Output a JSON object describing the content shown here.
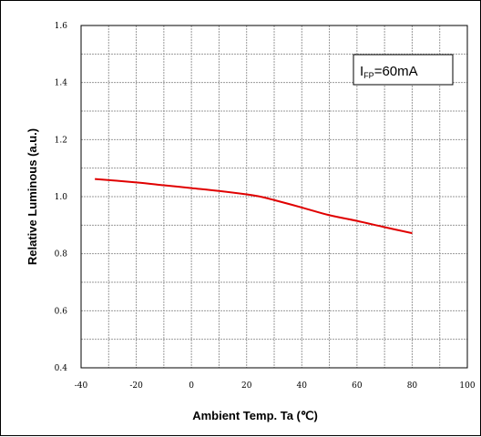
{
  "chart_data": {
    "type": "line",
    "title": "",
    "xlabel": "Ambient Temp. Ta (℃)",
    "ylabel": "Relative Luminous (a.u.)",
    "xlim": [
      -40,
      100
    ],
    "ylim": [
      0.4,
      1.6
    ],
    "x_ticks": [
      "-40",
      "-20",
      "0",
      "20",
      "40",
      "60",
      "80",
      "100"
    ],
    "y_ticks": [
      "0.4",
      "0.6",
      "0.8",
      "1.0",
      "1.2",
      "1.4",
      "1.6"
    ],
    "grid": true,
    "annotation": {
      "main": "I",
      "sub": "FP",
      "rest": "=60mA"
    },
    "series": [
      {
        "color": "#e00000",
        "x": [
          -35,
          -20,
          -10,
          0,
          10,
          20,
          25,
          30,
          40,
          50,
          60,
          70,
          80
        ],
        "y": [
          1.062,
          1.05,
          1.04,
          1.03,
          1.02,
          1.008,
          1.0,
          0.988,
          0.962,
          0.935,
          0.915,
          0.893,
          0.872
        ]
      }
    ]
  }
}
